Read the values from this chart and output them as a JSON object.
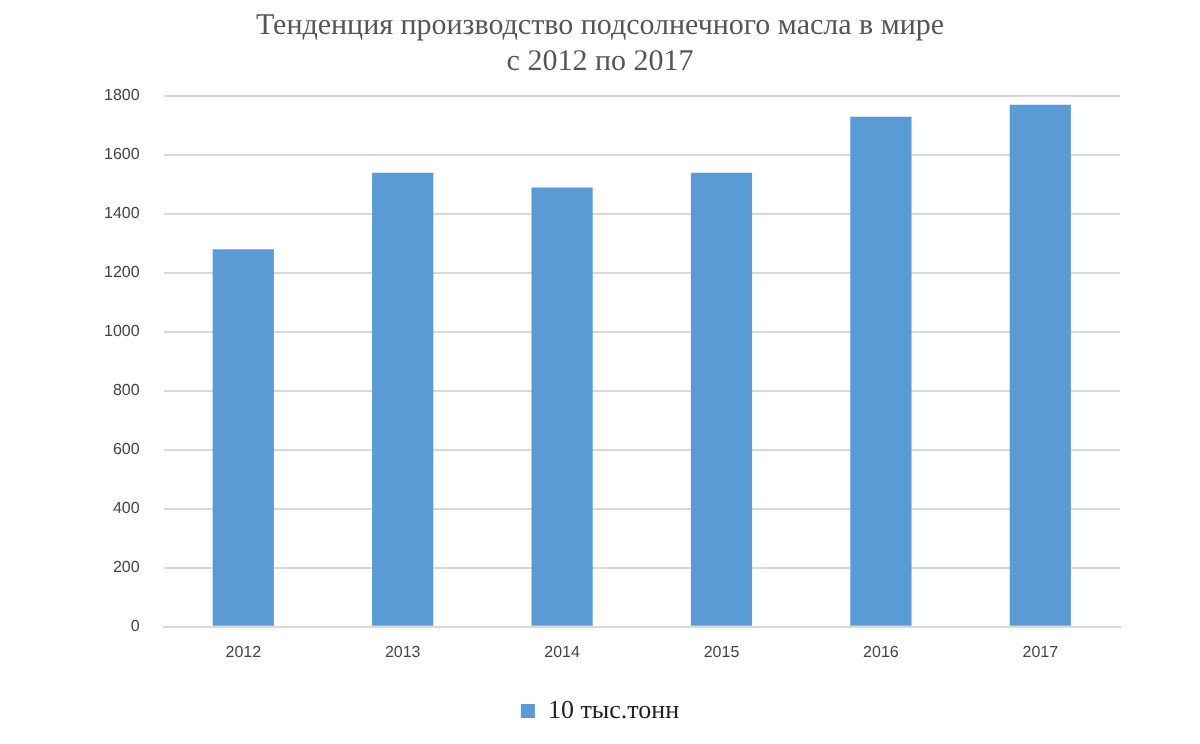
{
  "chart_data": {
    "type": "bar",
    "title": [
      "Тенденция производство подсолнечного масла в мире",
      "с 2012 по 2017"
    ],
    "categories": [
      "2012",
      "2013",
      "2014",
      "2015",
      "2016",
      "2017"
    ],
    "series": [
      {
        "name": "10 тыс.тонн",
        "color": "#5b9bd5",
        "values": [
          1280,
          1540,
          1490,
          1540,
          1730,
          1770
        ]
      }
    ],
    "ylim": [
      0,
      1800
    ],
    "yticks": [
      0,
      200,
      400,
      600,
      800,
      1000,
      1200,
      1400,
      1600,
      1800
    ],
    "grid": "y",
    "legend": "bottom"
  }
}
